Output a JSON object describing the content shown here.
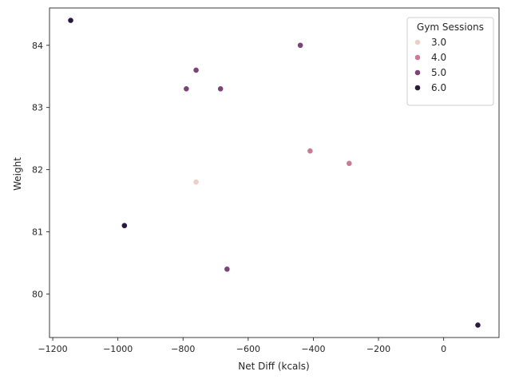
{
  "chart_data": {
    "type": "scatter",
    "xlabel": "Net Diff (kcals)",
    "ylabel": "Weight",
    "xlim": [
      -1210,
      170
    ],
    "ylim": [
      79.3,
      84.6
    ],
    "xticks": [
      -1200,
      -1000,
      -800,
      -600,
      -400,
      -200,
      0
    ],
    "xtick_labels": [
      "−1200",
      "−1000",
      "−800",
      "−600",
      "−400",
      "−200",
      "0"
    ],
    "yticks": [
      80,
      81,
      82,
      83,
      84
    ],
    "ytick_labels": [
      "80",
      "81",
      "82",
      "83",
      "84"
    ],
    "grid": false,
    "legend": {
      "title": "Gym Sessions",
      "placement": "top-right",
      "entries": [
        {
          "label": "3.0",
          "color": "#ecd0c8"
        },
        {
          "label": "4.0",
          "color": "#c97b96"
        },
        {
          "label": "5.0",
          "color": "#7c4377"
        },
        {
          "label": "6.0",
          "color": "#2a1a3e"
        }
      ]
    },
    "points": [
      {
        "x": -1145,
        "y": 84.4,
        "hue": 6.0
      },
      {
        "x": -440,
        "y": 84.0,
        "hue": 5.0
      },
      {
        "x": -760,
        "y": 83.6,
        "hue": 5.0
      },
      {
        "x": -790,
        "y": 83.3,
        "hue": 5.0
      },
      {
        "x": -685,
        "y": 83.3,
        "hue": 5.0
      },
      {
        "x": -410,
        "y": 82.3,
        "hue": 4.0
      },
      {
        "x": -290,
        "y": 82.1,
        "hue": 4.0
      },
      {
        "x": -760,
        "y": 81.8,
        "hue": 3.0
      },
      {
        "x": -980,
        "y": 81.1,
        "hue": 6.0
      },
      {
        "x": -665,
        "y": 80.4,
        "hue": 5.0
      },
      {
        "x": 105,
        "y": 79.5,
        "hue": 6.0
      }
    ]
  }
}
